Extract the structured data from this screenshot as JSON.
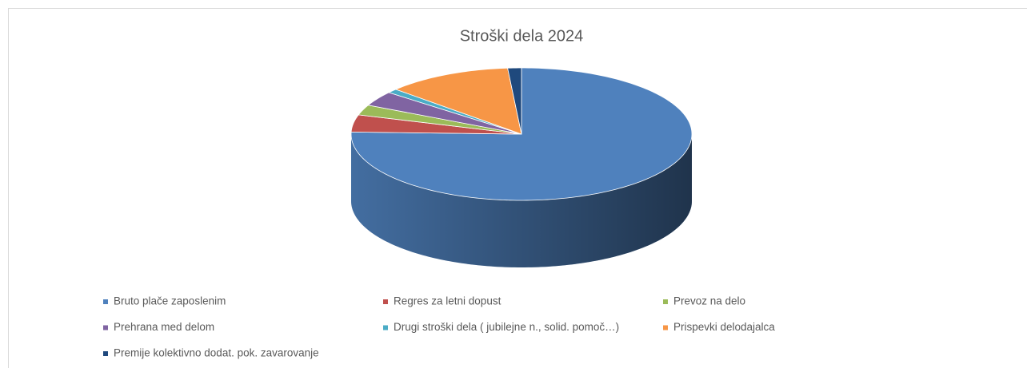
{
  "chart_data": {
    "type": "pie",
    "title": "Stroški dela 2024",
    "categories": [
      "Bruto plače zaposlenim",
      "Regres za letni dopust",
      "Prevoz na delo",
      "Prehrana med delom",
      "Drugi stroški dela ( jubilejne n., solid. pomoč…)",
      "Prispevki delodajalca",
      "Premije kolektivno dodat. pok. zavarovanje"
    ],
    "values": [
      75.5,
      4.2,
      2.5,
      3.6,
      1.0,
      11.9,
      1.3
    ],
    "colors": [
      "#4f81bd",
      "#c0504d",
      "#9bbb59",
      "#8064a2",
      "#4bacc6",
      "#f79646",
      "#1f497d"
    ],
    "legend": "bottom",
    "three_d": true
  }
}
